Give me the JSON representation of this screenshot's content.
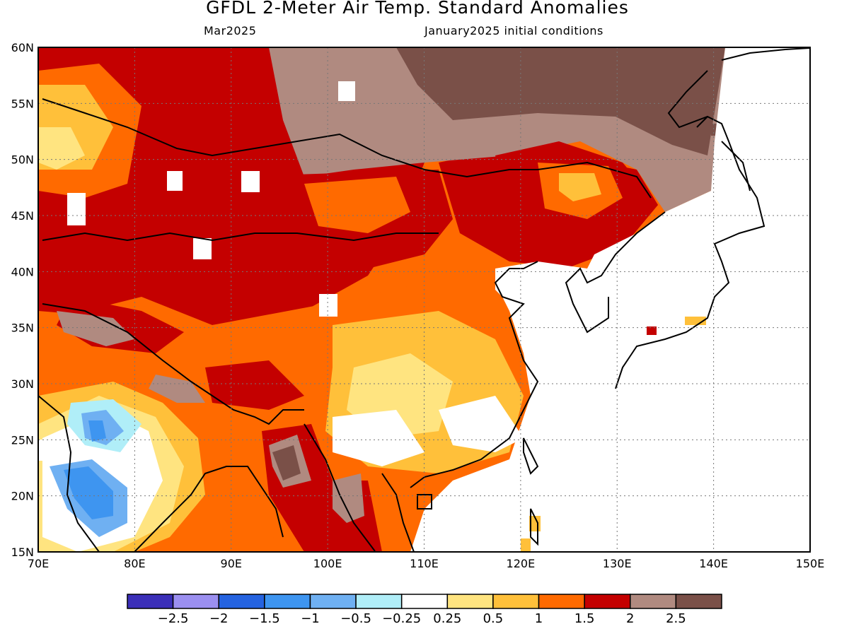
{
  "header": {
    "title": "GFDL 2-Meter Air Temp. Standard Anomalies",
    "valid_month": "Mar2025",
    "init_conditions": "January2025 initial conditions"
  },
  "map": {
    "lat_labels": [
      "60N",
      "55N",
      "50N",
      "45N",
      "40N",
      "35N",
      "30N",
      "25N",
      "20N",
      "15N"
    ],
    "lon_labels": [
      "70E",
      "80E",
      "90E",
      "100E",
      "110E",
      "120E",
      "130E",
      "140E",
      "150E"
    ],
    "lat_range": [
      15,
      60
    ],
    "lon_range": [
      70,
      150
    ],
    "gridlines": "dotted"
  },
  "legend": {
    "bins": [
      {
        "color": "#3b2fb8"
      },
      {
        "color": "#9b8ff0"
      },
      {
        "color": "#2563e0"
      },
      {
        "color": "#3e95f0"
      },
      {
        "color": "#6fb0f2"
      },
      {
        "color": "#b0eef8"
      },
      {
        "color": "#ffffff"
      },
      {
        "color": "#ffe480"
      },
      {
        "color": "#ffc03a"
      },
      {
        "color": "#ff6a00"
      },
      {
        "color": "#c40000"
      },
      {
        "color": "#b08a80"
      },
      {
        "color": "#7a5048"
      }
    ],
    "labels": [
      "-2.5",
      "-2",
      "-1.5",
      "-1",
      "-0.5",
      "-0.25",
      "0.25",
      "0.5",
      "1",
      "1.5",
      "2",
      "2.5"
    ]
  }
}
